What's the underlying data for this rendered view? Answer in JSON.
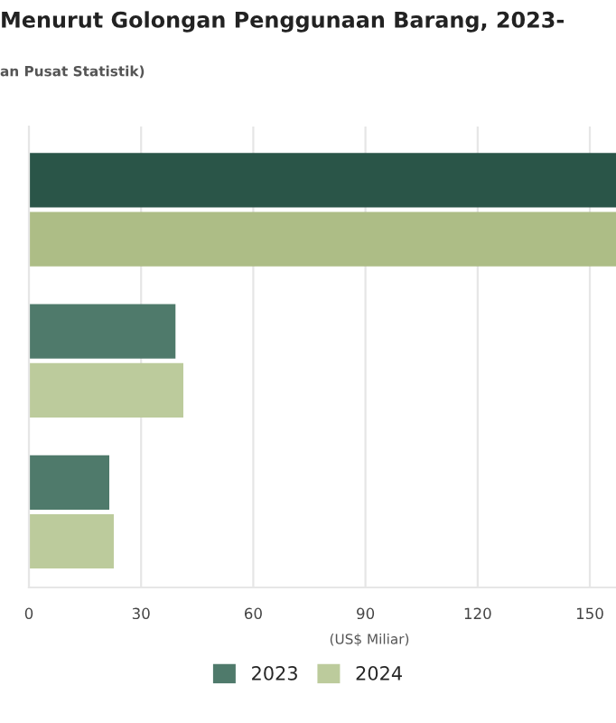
{
  "chart_data": {
    "type": "bar",
    "orientation": "horizontal",
    "title": "Menurut Golongan Penggunaan Barang, 2023-",
    "subtitle": "an Pusat Statistik)",
    "xlabel": "(US$ Miliar)",
    "categories": [
      null,
      null,
      null
    ],
    "series": [
      {
        "name": "2023",
        "color": "#4f7a6b",
        "colors": [
          "#2a5548",
          "#4f7a6b",
          "#4f7a6b"
        ],
        "values": [
          157,
          39.2,
          21.5
        ]
      },
      {
        "name": "2024",
        "color": "#bccb9c",
        "colors": [
          "#adbd86",
          "#bccb9c",
          "#bccb9c"
        ],
        "values": [
          157,
          41.3,
          22.7
        ]
      }
    ],
    "xlim": [
      0,
      157
    ],
    "xticks": [
      0,
      30,
      60,
      90,
      120,
      150
    ],
    "grid": "x",
    "legend": "bottom"
  }
}
